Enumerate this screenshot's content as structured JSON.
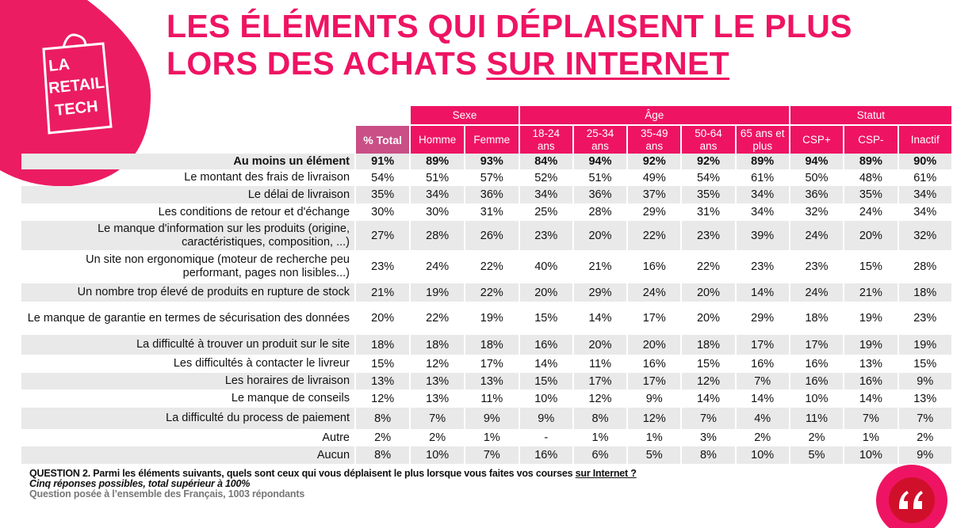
{
  "logo": {
    "line1": "LA",
    "line2": "RETAIL",
    "line3": "TECH"
  },
  "header": {
    "title_line1": "LES ÉLÉMENTS QUI DÉPLAISENT LE PLUS",
    "title_line2": "LORS DES ACHATS ",
    "title_underlined": "SUR INTERNET"
  },
  "table": {
    "groups": [
      "Sexe",
      "Âge",
      "Statut"
    ],
    "columns": [
      "% Total",
      "Homme",
      "Femme",
      "18-24 ans",
      "25-34 ans",
      "35-49 ans",
      "50-64 ans",
      "65 ans et plus",
      "CSP+",
      "CSP-",
      "Inactif"
    ],
    "rows": [
      [
        "Au moins un élément",
        "91%",
        "89%",
        "93%",
        "84%",
        "94%",
        "92%",
        "92%",
        "89%",
        "94%",
        "89%",
        "90%"
      ],
      [
        "Le montant des frais de livraison",
        "54%",
        "51%",
        "57%",
        "52%",
        "51%",
        "49%",
        "54%",
        "61%",
        "50%",
        "48%",
        "61%"
      ],
      [
        "Le délai de livraison",
        "35%",
        "34%",
        "36%",
        "34%",
        "36%",
        "37%",
        "35%",
        "34%",
        "36%",
        "35%",
        "34%"
      ],
      [
        "Les conditions de retour et d'échange",
        "30%",
        "30%",
        "31%",
        "25%",
        "28%",
        "29%",
        "31%",
        "34%",
        "32%",
        "24%",
        "34%"
      ],
      [
        "Le manque d'information sur les produits (origine, caractéristiques, composition, ...)",
        "27%",
        "28%",
        "26%",
        "23%",
        "20%",
        "22%",
        "23%",
        "39%",
        "24%",
        "20%",
        "32%"
      ],
      [
        "Un site non ergonomique (moteur de recherche peu performant, pages non lisibles...)",
        "23%",
        "24%",
        "22%",
        "40%",
        "21%",
        "16%",
        "22%",
        "23%",
        "23%",
        "15%",
        "28%"
      ],
      [
        "Un nombre trop élevé de produits en rupture de stock",
        "21%",
        "19%",
        "22%",
        "20%",
        "29%",
        "24%",
        "20%",
        "14%",
        "24%",
        "21%",
        "18%"
      ],
      [
        "Le manque de garantie en termes de sécurisation des données",
        "20%",
        "22%",
        "19%",
        "15%",
        "14%",
        "17%",
        "20%",
        "29%",
        "18%",
        "19%",
        "23%"
      ],
      [
        "La difficulté à trouver un produit sur le site",
        "18%",
        "18%",
        "18%",
        "16%",
        "20%",
        "20%",
        "18%",
        "17%",
        "17%",
        "19%",
        "19%"
      ],
      [
        "Les difficultés à contacter le livreur",
        "15%",
        "12%",
        "17%",
        "14%",
        "11%",
        "16%",
        "15%",
        "16%",
        "16%",
        "13%",
        "15%"
      ],
      [
        "Les horaires de livraison",
        "13%",
        "13%",
        "13%",
        "15%",
        "17%",
        "17%",
        "12%",
        "7%",
        "16%",
        "16%",
        "9%"
      ],
      [
        "Le manque de conseils",
        "12%",
        "13%",
        "11%",
        "10%",
        "12%",
        "9%",
        "14%",
        "14%",
        "10%",
        "14%",
        "13%"
      ],
      [
        "La difficulté du process de paiement",
        "8%",
        "7%",
        "9%",
        "9%",
        "8%",
        "12%",
        "7%",
        "4%",
        "11%",
        "7%",
        "7%"
      ],
      [
        "Autre",
        "2%",
        "2%",
        "1%",
        "-",
        "1%",
        "1%",
        "3%",
        "2%",
        "2%",
        "1%",
        "2%"
      ],
      [
        "Aucun",
        "8%",
        "10%",
        "7%",
        "16%",
        "6%",
        "5%",
        "8%",
        "10%",
        "5%",
        "10%",
        "9%"
      ]
    ]
  },
  "footer": {
    "question": "QUESTION 2. Parmi les éléments suivants, quels sont ceux qui vous déplaisent le plus lorsque vous faites vos courses ",
    "question_underlined": "sur Internet ?",
    "note": "Cinq réponses possibles, total supérieur à 100%",
    "sample": "Question posée à l’ensemble des Français, 1003 répondants"
  }
}
